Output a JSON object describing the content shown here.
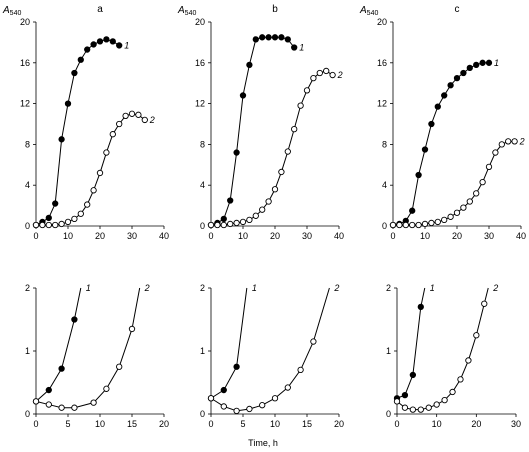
{
  "figure": {
    "xlabel": "Time, h",
    "ylabel": {
      "main": "A",
      "sub": "540"
    }
  },
  "chart_data": [
    {
      "type": "line",
      "panel": "a",
      "row": "top",
      "xlim": [
        0,
        40
      ],
      "ylim": [
        0,
        20
      ],
      "xticks": [
        "0",
        "10",
        "20",
        "30",
        "40"
      ],
      "yticks": [
        "0",
        "4",
        "8",
        "12",
        "16",
        "20"
      ],
      "panel_label": "a",
      "ylabel": "A540",
      "series": [
        {
          "name": "1",
          "marker": "filled",
          "label_pos": "end",
          "x": [
            0,
            2,
            4,
            6,
            8,
            10,
            12,
            14,
            16,
            18,
            20,
            22,
            24,
            26
          ],
          "y": [
            0.1,
            0.4,
            0.8,
            2.2,
            8.5,
            12,
            15,
            16.3,
            17.3,
            17.8,
            18.1,
            18.3,
            18.1,
            17.7
          ]
        },
        {
          "name": "2",
          "marker": "open",
          "label_pos": "end",
          "x": [
            0,
            2,
            4,
            6,
            8,
            10,
            12,
            14,
            16,
            18,
            20,
            22,
            24,
            26,
            28,
            30,
            32,
            34
          ],
          "y": [
            0.1,
            0.1,
            0.1,
            0.1,
            0.2,
            0.4,
            0.7,
            1.2,
            2.1,
            3.5,
            5.2,
            7.2,
            9.0,
            10.0,
            10.8,
            11.0,
            10.9,
            10.4
          ]
        }
      ]
    },
    {
      "type": "line",
      "panel": "b",
      "row": "top",
      "xlim": [
        0,
        40
      ],
      "ylim": [
        0,
        20
      ],
      "xticks": [
        "0",
        "10",
        "20",
        "30",
        "40"
      ],
      "yticks": [
        "0",
        "4",
        "8",
        "12",
        "16",
        "20"
      ],
      "panel_label": "b",
      "ylabel": "A540",
      "series": [
        {
          "name": "1",
          "marker": "filled",
          "label_pos": "end",
          "x": [
            0,
            2,
            4,
            6,
            8,
            10,
            12,
            14,
            16,
            18,
            20,
            22,
            24,
            26
          ],
          "y": [
            0.1,
            0.3,
            0.7,
            2.5,
            7.2,
            12.8,
            15.8,
            18.3,
            18.5,
            18.5,
            18.5,
            18.5,
            18.3,
            17.5
          ]
        },
        {
          "name": "2",
          "marker": "open",
          "label_pos": "end",
          "x": [
            0,
            2,
            4,
            6,
            8,
            10,
            12,
            14,
            16,
            18,
            20,
            22,
            24,
            26,
            28,
            30,
            32,
            34,
            36,
            38
          ],
          "y": [
            0.1,
            0.1,
            0.1,
            0.2,
            0.3,
            0.4,
            0.6,
            1.0,
            1.6,
            2.4,
            3.6,
            5.3,
            7.3,
            9.5,
            11.8,
            13.3,
            14.5,
            15.0,
            15.2,
            14.8
          ]
        }
      ]
    },
    {
      "type": "line",
      "panel": "c",
      "row": "top",
      "xlim": [
        0,
        40
      ],
      "ylim": [
        0,
        20
      ],
      "xticks": [
        "0",
        "10",
        "20",
        "30",
        "40"
      ],
      "yticks": [
        "0",
        "4",
        "8",
        "12",
        "16",
        "20"
      ],
      "panel_label": "c",
      "ylabel": "A540",
      "series": [
        {
          "name": "1",
          "marker": "filled",
          "label_pos": "end",
          "x": [
            0,
            2,
            4,
            6,
            8,
            10,
            12,
            14,
            16,
            18,
            20,
            22,
            24,
            26,
            28,
            30
          ],
          "y": [
            0.1,
            0.2,
            0.5,
            1.5,
            5.0,
            7.5,
            10.0,
            11.7,
            12.8,
            13.8,
            14.5,
            15.0,
            15.5,
            15.8,
            16.0,
            16.0
          ]
        },
        {
          "name": "2",
          "marker": "open",
          "label_pos": "end",
          "x": [
            0,
            2,
            4,
            6,
            8,
            10,
            12,
            14,
            16,
            18,
            20,
            22,
            24,
            26,
            28,
            30,
            32,
            34,
            36,
            38
          ],
          "y": [
            0.1,
            0.1,
            0.1,
            0.1,
            0.1,
            0.2,
            0.3,
            0.4,
            0.6,
            0.9,
            1.3,
            1.8,
            2.4,
            3.2,
            4.3,
            5.8,
            7.2,
            8.0,
            8.3,
            8.3
          ]
        }
      ]
    },
    {
      "type": "line",
      "panel": "a",
      "row": "bottom",
      "xlim": [
        0,
        20
      ],
      "ylim": [
        0,
        2
      ],
      "xticks": [
        "0",
        "5",
        "10",
        "15",
        "20"
      ],
      "yticks": [
        "0",
        "1",
        "2"
      ],
      "series": [
        {
          "name": "1",
          "marker": "filled",
          "label_pos": "top",
          "x": [
            0,
            2,
            4,
            6,
            7.0
          ],
          "y": [
            0.2,
            0.38,
            0.72,
            1.5,
            2.0
          ]
        },
        {
          "name": "2",
          "marker": "open",
          "label_pos": "top",
          "x": [
            0,
            2,
            4,
            6,
            9,
            11,
            13,
            15,
            16.2
          ],
          "y": [
            0.2,
            0.15,
            0.1,
            0.1,
            0.18,
            0.4,
            0.75,
            1.35,
            2.0
          ]
        }
      ],
      "extra_markers": [
        {
          "series": "2",
          "x": [
            0,
            2,
            4,
            6,
            9,
            11,
            15
          ],
          "y": [
            0.2,
            0.15,
            0.1,
            0.1,
            0.18,
            0.4,
            1.1
          ]
        }
      ]
    },
    {
      "type": "line",
      "panel": "b",
      "row": "bottom",
      "xlim": [
        0,
        20
      ],
      "ylim": [
        0,
        2
      ],
      "xticks": [
        "0",
        "5",
        "10",
        "15",
        "20"
      ],
      "yticks": [
        "0",
        "1",
        "2"
      ],
      "series": [
        {
          "name": "1",
          "marker": "filled",
          "label_pos": "top",
          "x": [
            0,
            2,
            4,
            5.6
          ],
          "y": [
            0.25,
            0.38,
            0.75,
            2.0
          ]
        },
        {
          "name": "2",
          "marker": "open",
          "label_pos": "top",
          "x": [
            0,
            2,
            4,
            6,
            8,
            10,
            12,
            14,
            16,
            18.5
          ],
          "y": [
            0.25,
            0.12,
            0.05,
            0.08,
            0.14,
            0.25,
            0.42,
            0.7,
            1.15,
            2.0
          ]
        }
      ]
    },
    {
      "type": "line",
      "panel": "c",
      "row": "bottom",
      "xlim": [
        0,
        30
      ],
      "ylim": [
        0,
        2
      ],
      "xticks": [
        "0",
        "10",
        "20",
        "30"
      ],
      "yticks": [
        "0",
        "1",
        "2"
      ],
      "series": [
        {
          "name": "1",
          "marker": "filled",
          "label_pos": "top",
          "x": [
            0,
            2,
            4,
            6,
            7.0
          ],
          "y": [
            0.25,
            0.3,
            0.62,
            1.7,
            2.0
          ]
        },
        {
          "name": "2",
          "marker": "open",
          "label_pos": "top",
          "x": [
            0,
            2,
            4,
            6,
            8,
            10,
            12,
            14,
            16,
            18,
            20,
            22,
            23
          ],
          "y": [
            0.2,
            0.1,
            0.07,
            0.07,
            0.1,
            0.15,
            0.22,
            0.35,
            0.55,
            0.85,
            1.25,
            1.75,
            2.0
          ]
        }
      ]
    }
  ]
}
